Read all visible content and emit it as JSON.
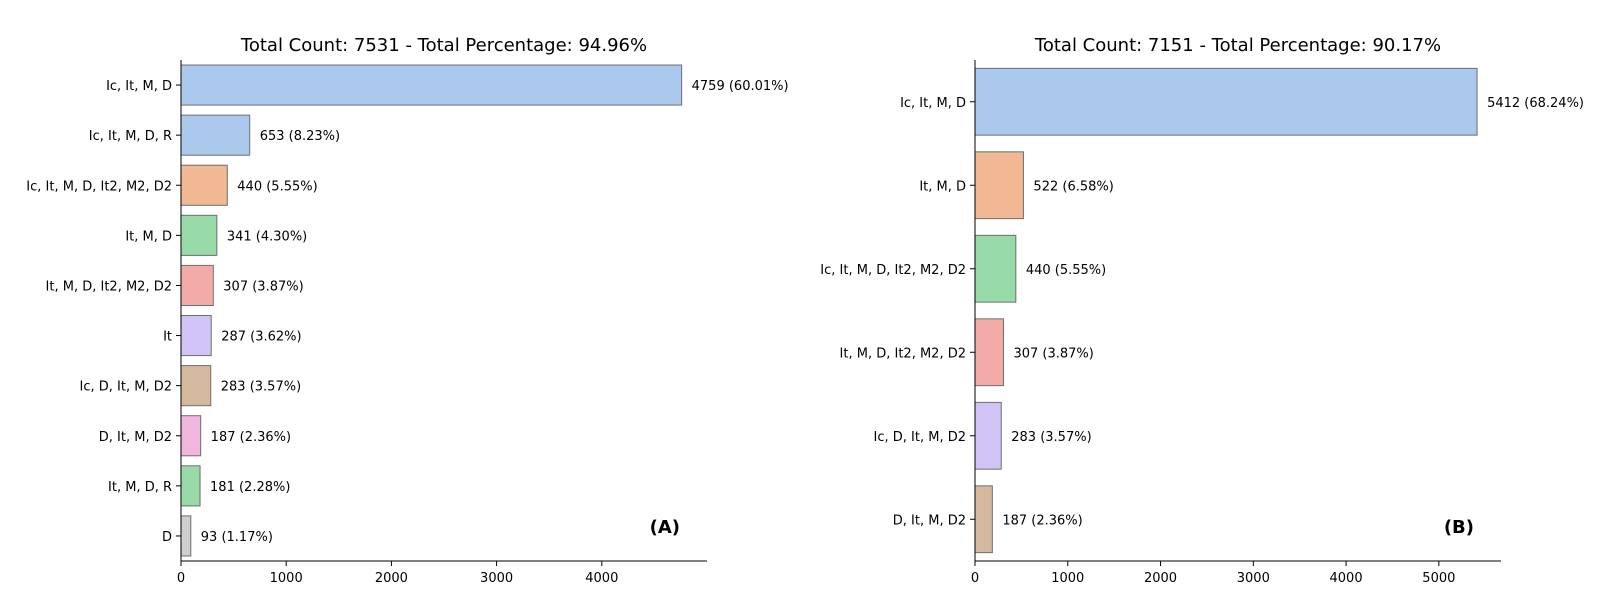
{
  "chart_data": [
    {
      "type": "bar",
      "orientation": "horizontal",
      "title": "Total Count: 7531 - Total Percentage: 94.96%",
      "panel_label": "(A)",
      "categories": [
        "Ic, It, M, D",
        "Ic, It, M, D, R",
        "Ic, It, M, D, It2, M2, D2",
        "It, M, D",
        "It, M, D, It2, M2, D2",
        "It",
        "Ic, D, It, M, D2",
        "D, It, M, D2",
        "It, M, D, R",
        "D"
      ],
      "values": [
        4759,
        653,
        440,
        341,
        307,
        287,
        283,
        187,
        181,
        93
      ],
      "value_labels": [
        "4759 (60.01%)",
        "653 (8.23%)",
        "440 (5.55%)",
        "341 (4.30%)",
        "307 (3.87%)",
        "287 (3.62%)",
        "283 (3.57%)",
        "187 (2.36%)",
        "181 (2.28%)",
        "93 (1.17%)"
      ],
      "colors": [
        "#abc9ed",
        "#abc9ed",
        "#f1b893",
        "#99dba8",
        "#f3aba8",
        "#d1c3f6",
        "#d5b99e",
        "#f1b6de",
        "#99dba8",
        "#cfcfcf"
      ],
      "xticks": [
        "0",
        "1000",
        "2000",
        "3000",
        "4000"
      ],
      "xlim": [
        0,
        5000
      ],
      "xlabel": "",
      "ylabel": "",
      "grid": false
    },
    {
      "type": "bar",
      "orientation": "horizontal",
      "title": "Total Count: 7151 - Total Percentage: 90.17%",
      "panel_label": "(B)",
      "categories": [
        "Ic, It, M, D",
        "It, M, D",
        "Ic, It, M, D, It2, M2, D2",
        "It, M, D, It2, M2, D2",
        "Ic, D, It, M, D2",
        "D, It, M, D2"
      ],
      "values": [
        5412,
        522,
        440,
        307,
        283,
        187
      ],
      "value_labels": [
        "5412 (68.24%)",
        "522 (6.58%)",
        "440 (5.55%)",
        "307 (3.87%)",
        "283 (3.57%)",
        "187 (2.36%)"
      ],
      "colors": [
        "#abc9ed",
        "#f1b893",
        "#99dba8",
        "#f3aba8",
        "#d1c3f6",
        "#d5b99e"
      ],
      "xticks": [
        "0",
        "1000",
        "2000",
        "3000",
        "4000",
        "5000"
      ],
      "xlim": [
        0,
        5670
      ],
      "xlabel": "",
      "ylabel": "",
      "grid": false
    }
  ]
}
